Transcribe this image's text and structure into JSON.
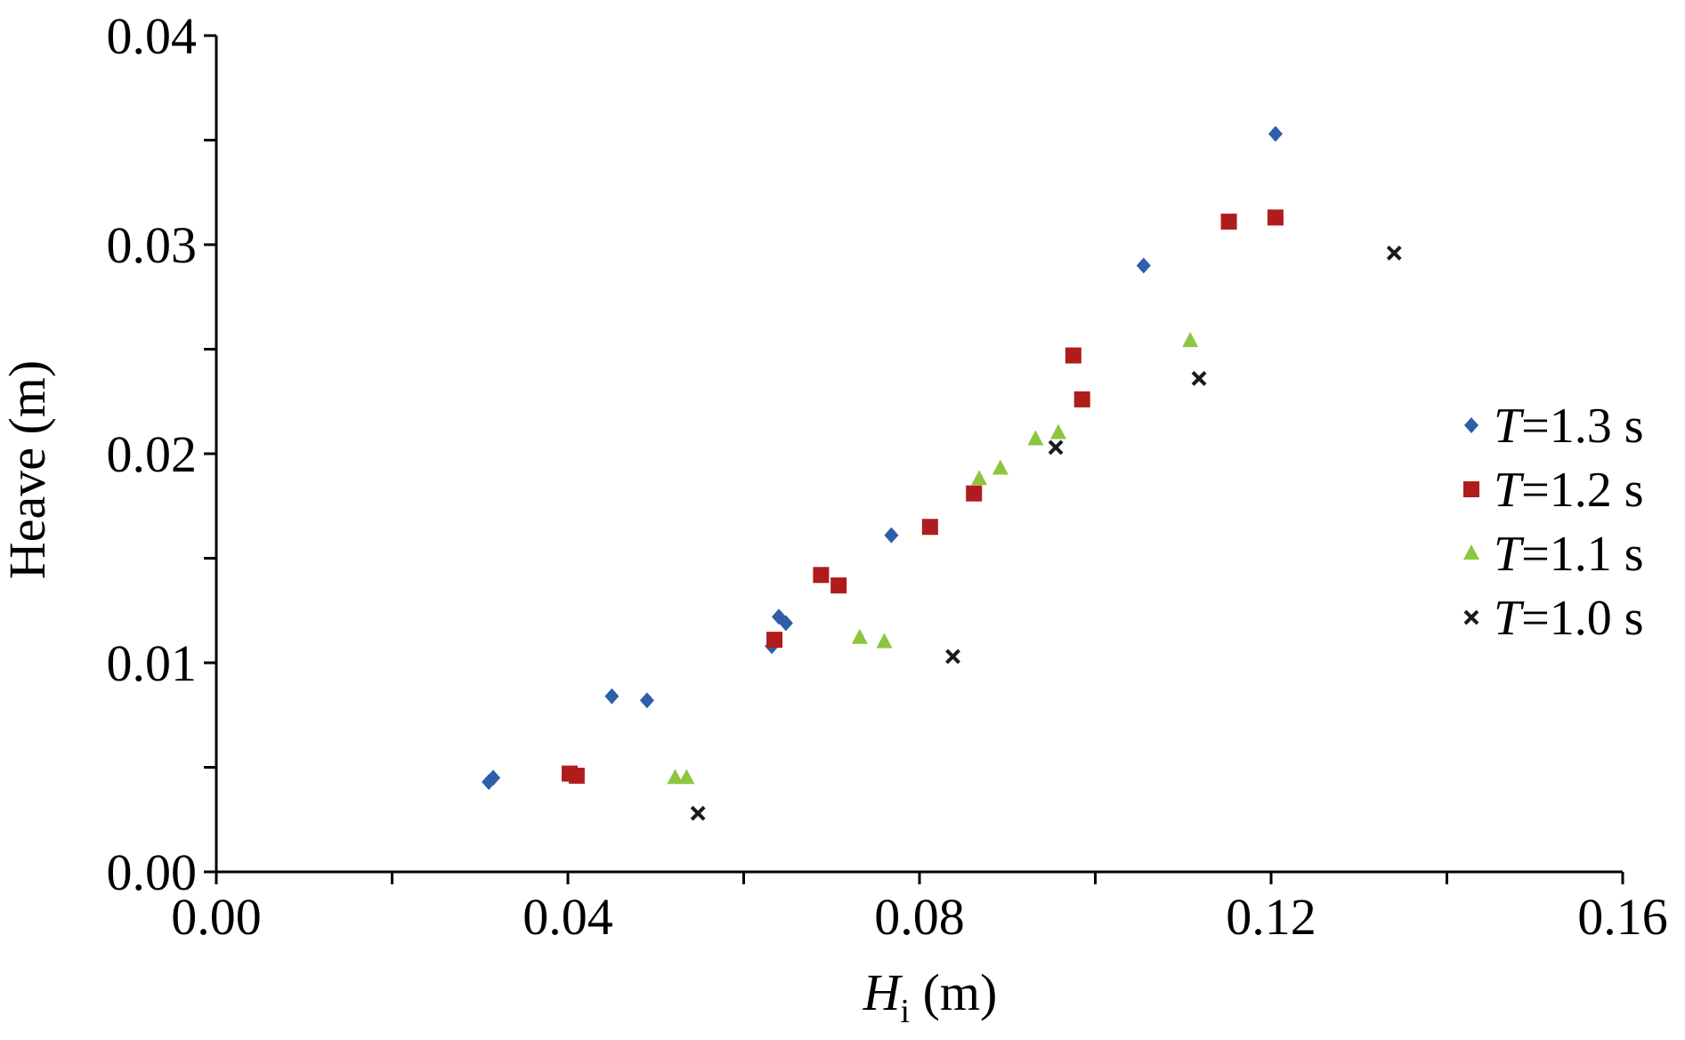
{
  "chart_data": {
    "type": "scatter",
    "xlabel_main": "H",
    "xlabel_sub": "i",
    "xlabel_unit": " (m)",
    "ylabel": "Heave (m)",
    "xlim": [
      0,
      0.16
    ],
    "ylim": [
      0,
      0.04
    ],
    "x_ticks": [
      "0.00",
      "0.04",
      "0.08",
      "0.12",
      "0.16"
    ],
    "y_ticks": [
      "0.00",
      "0.01",
      "0.02",
      "0.03",
      "0.04"
    ],
    "legend_position": "right",
    "grid": false,
    "series": [
      {
        "name": "T=1.3 s",
        "var": "T",
        "rest": "=1.3 s",
        "marker": "diamond",
        "color": "#2e5fa8",
        "points": [
          [
            0.031,
            0.0043
          ],
          [
            0.0315,
            0.0045
          ],
          [
            0.045,
            0.0084
          ],
          [
            0.049,
            0.0082
          ],
          [
            0.0632,
            0.0108
          ],
          [
            0.064,
            0.0122
          ],
          [
            0.0648,
            0.0119
          ],
          [
            0.0768,
            0.0161
          ],
          [
            0.1055,
            0.029
          ],
          [
            0.1205,
            0.0353
          ]
        ]
      },
      {
        "name": "T=1.2 s",
        "var": "T",
        "rest": "=1.2 s",
        "marker": "square",
        "color": "#b01c1c",
        "points": [
          [
            0.0402,
            0.0047
          ],
          [
            0.041,
            0.0046
          ],
          [
            0.0635,
            0.0111
          ],
          [
            0.0688,
            0.0142
          ],
          [
            0.0708,
            0.0137
          ],
          [
            0.0812,
            0.0165
          ],
          [
            0.0862,
            0.0181
          ],
          [
            0.0975,
            0.0247
          ],
          [
            0.0985,
            0.0226
          ],
          [
            0.1152,
            0.0311
          ],
          [
            0.1205,
            0.0313
          ]
        ]
      },
      {
        "name": "T=1.1 s",
        "var": "T",
        "rest": "=1.1 s",
        "marker": "triangle",
        "color": "#8cc63f",
        "points": [
          [
            0.0522,
            0.0045
          ],
          [
            0.0535,
            0.0045
          ],
          [
            0.0732,
            0.0112
          ],
          [
            0.076,
            0.011
          ],
          [
            0.0868,
            0.0188
          ],
          [
            0.0892,
            0.0193
          ],
          [
            0.0932,
            0.0207
          ],
          [
            0.0958,
            0.021
          ],
          [
            0.1108,
            0.0254
          ]
        ]
      },
      {
        "name": "T=1.0 s",
        "var": "T",
        "rest": "=1.0 s",
        "marker": "x",
        "color": "#1a1a1a",
        "points": [
          [
            0.0548,
            0.0028
          ],
          [
            0.0838,
            0.0103
          ],
          [
            0.0955,
            0.0203
          ],
          [
            0.1118,
            0.0236
          ],
          [
            0.134,
            0.0296
          ]
        ]
      }
    ]
  }
}
